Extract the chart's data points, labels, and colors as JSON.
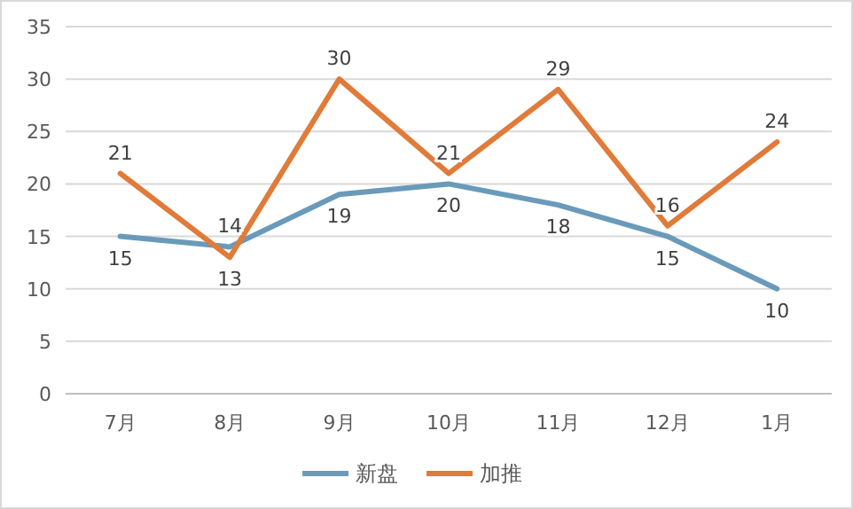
{
  "chart_data": {
    "type": "line",
    "categories": [
      "7月",
      "8月",
      "9月",
      "10月",
      "11月",
      "12月",
      "1月"
    ],
    "series": [
      {
        "name": "新盘",
        "color": "#6a9aba",
        "values": [
          15,
          14,
          19,
          20,
          18,
          15,
          10
        ]
      },
      {
        "name": "加推",
        "color": "#e07b39",
        "values": [
          21,
          13,
          30,
          21,
          29,
          16,
          24
        ]
      }
    ],
    "ylim": [
      0,
      35
    ],
    "yticks": [
      0,
      5,
      10,
      15,
      20,
      25,
      30,
      35
    ],
    "grid": "y",
    "legend": "bottom",
    "data_labels": true,
    "marker": "none",
    "line_style": "solid"
  }
}
